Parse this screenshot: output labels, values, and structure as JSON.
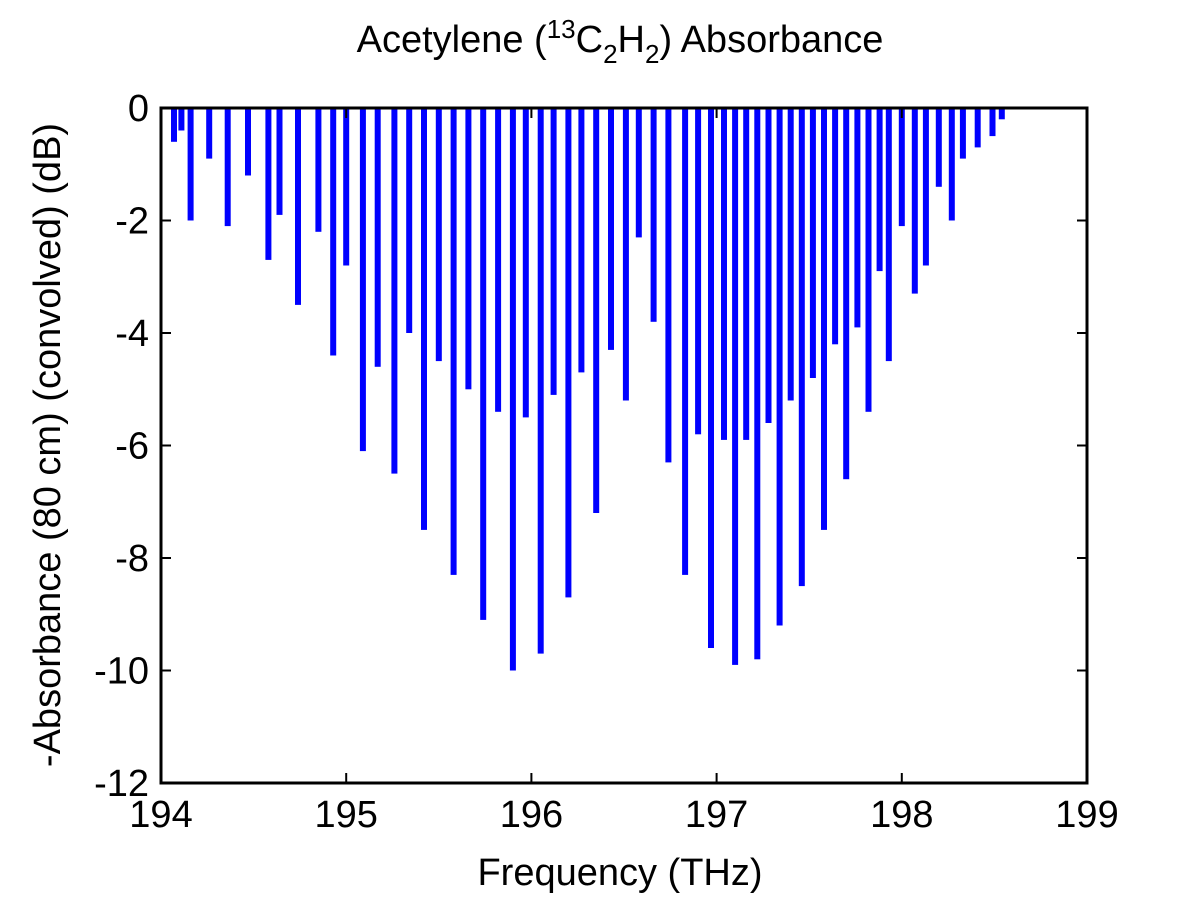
{
  "chart_data": {
    "type": "bar",
    "title": {
      "prefix": "Acetylene (",
      "superscript": "13",
      "c": "C",
      "sub1": "2",
      "h": "H",
      "sub2": "2",
      "suffix": ") Absorbance"
    },
    "xlabel": "Frequency (THz)",
    "ylabel": "-Absorbance (80 cm) (convolved) (dB)",
    "xlim": [
      194,
      199
    ],
    "ylim": [
      -12,
      0
    ],
    "xticks": [
      "194",
      "195",
      "196",
      "197",
      "198",
      "199"
    ],
    "yticks": [
      "0",
      "-2",
      "-4",
      "-6",
      "-8",
      "-10",
      "-12"
    ],
    "grid": false,
    "series_color": "#0000ff",
    "series": [
      {
        "x": [
          194.07,
          194.11,
          194.16,
          194.26,
          194.36,
          194.47,
          194.58,
          194.64,
          194.74,
          194.85,
          194.93,
          195.0,
          195.09,
          195.17,
          195.26,
          195.34,
          195.42,
          195.5,
          195.58,
          195.66,
          195.74,
          195.82,
          195.9,
          195.97,
          196.05,
          196.12,
          196.2,
          196.27,
          196.35,
          196.43,
          196.51,
          196.58,
          196.66,
          196.74,
          196.83,
          196.9,
          196.97,
          197.04,
          197.1,
          197.16,
          197.22,
          197.28,
          197.34,
          197.4,
          197.46,
          197.52,
          197.58,
          197.64,
          197.7,
          197.76,
          197.82,
          197.88,
          197.93,
          198.0,
          198.07,
          198.13,
          198.2,
          198.27,
          198.33,
          198.41,
          198.49,
          198.54
        ],
        "y": [
          -0.6,
          -0.4,
          -2.0,
          -0.9,
          -2.1,
          -1.2,
          -2.7,
          -1.9,
          -3.5,
          -2.2,
          -4.4,
          -2.8,
          -6.1,
          -4.6,
          -6.5,
          -4.0,
          -7.5,
          -4.5,
          -8.3,
          -5.0,
          -9.1,
          -5.4,
          -10.0,
          -5.5,
          -9.7,
          -5.1,
          -8.7,
          -4.7,
          -7.2,
          -4.3,
          -5.2,
          -2.3,
          -3.8,
          -6.3,
          -8.3,
          -5.8,
          -9.6,
          -5.9,
          -9.9,
          -5.9,
          -9.8,
          -5.6,
          -9.2,
          -5.2,
          -8.5,
          -4.8,
          -7.5,
          -4.2,
          -6.6,
          -3.9,
          -5.4,
          -2.9,
          -4.5,
          -2.1,
          -3.3,
          -2.8,
          -1.4,
          -2.0,
          -0.9,
          -0.7,
          -0.5,
          -0.2
        ]
      }
    ]
  }
}
